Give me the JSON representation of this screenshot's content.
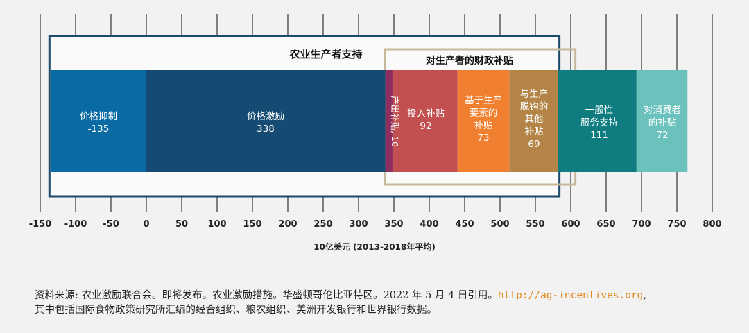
{
  "chart_data": {
    "type": "bar",
    "xlabel": "10亿美元 (2013-2018年平均)",
    "xlim": [
      -150,
      800
    ],
    "xticks": [
      -150,
      -100,
      -50,
      0,
      50,
      100,
      150,
      200,
      250,
      300,
      350,
      400,
      450,
      500,
      550,
      600,
      650,
      700,
      750,
      800
    ],
    "grid": true,
    "segments": [
      {
        "label": "价格抑制",
        "value": -135,
        "start": -135,
        "end": 0,
        "color": "#0a6aa4"
      },
      {
        "label": "价格激励",
        "value": 338,
        "start": 0,
        "end": 338,
        "color": "#154a73"
      },
      {
        "label": "产出补贴",
        "value": 10,
        "start": 338,
        "end": 348,
        "color": "#8f2e5e"
      },
      {
        "label": "投入补贴",
        "value": 92,
        "start": 348,
        "end": 440,
        "color": "#c25050"
      },
      {
        "label": "基于生产要素的补贴",
        "value": 73,
        "start": 440,
        "end": 513,
        "color": "#f08030"
      },
      {
        "label": "与生产脱钩的其他补贴",
        "value": 69,
        "start": 513,
        "end": 582,
        "color": "#b38446"
      },
      {
        "label": "一般性服务支持",
        "value": 111,
        "start": 582,
        "end": 693,
        "color": "#0f7d80"
      },
      {
        "label": "对消费者的补贴",
        "value": 72,
        "start": 693,
        "end": 765,
        "color": "#6bc2bd"
      }
    ],
    "groups": [
      {
        "label": "农业生产者支持",
        "start": -135,
        "end": 582,
        "color": "#1c4a6b"
      },
      {
        "label": "对生产者的财政补贴",
        "start": 338,
        "end": 582,
        "color": "#c8b89a"
      }
    ]
  },
  "segment_text": {
    "price_suppression": {
      "line1": "价格抑制",
      "value": "-135"
    },
    "price_incentive": {
      "line1": "价格激励",
      "value": "338"
    },
    "output_subsidy": {
      "text": "产出补贴, 10"
    },
    "input_subsidy": {
      "line1": "投入补贴",
      "value": "92"
    },
    "factor_subsidy": {
      "line1": "基于生产",
      "line2": "要素的",
      "line3": "补贴",
      "value": "73"
    },
    "decoupled_subsidy": {
      "line1": "与生产",
      "line2": "脱钩的",
      "line3": "其他",
      "line4": "补贴",
      "value": "69"
    },
    "general_services": {
      "line1": "一般性",
      "line2": "服务支持",
      "value": "111"
    },
    "consumer_subsidy": {
      "line1": "对消费者",
      "line2": "的补贴",
      "value": "72"
    }
  },
  "source": {
    "text": "资料来源: 农业激励联合会。即将发布。农业激励措施。华盛顿哥伦比亚特区。2022 年 5 月 4 日引用。",
    "link": "http://ag-incentives.org",
    "text2": ",",
    "text3": "其中包括国际食物政策研究所汇编的经合组织、粮农组织、美洲开发银行和世界银行数据。"
  }
}
